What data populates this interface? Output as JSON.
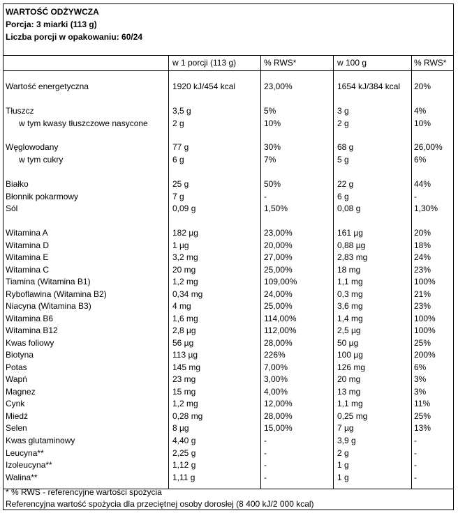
{
  "header": {
    "title": "WARTOŚĆ ODŻYWCZA",
    "serving": "Porcja: 3 miarki (113 g)",
    "servings_count": "Liczba porcji w opakowaniu: 60/24"
  },
  "columns": [
    "",
    "w 1 porcji (113 g)",
    "% RWS*",
    "w 100 g",
    "% RWS*"
  ],
  "rows": [
    [
      "Wartość energetyczna",
      "1920 kJ/454 kcal",
      "23,00%",
      "1654 kJ/384 kcal",
      "20%"
    ],
    [
      "Tłuszcz",
      "3,5 g",
      "5%",
      "3 g",
      "4%"
    ],
    [
      "w tym kwasy tłuszczowe nasycone",
      "2 g",
      "10%",
      "2 g",
      "10%"
    ],
    [
      "Węglowodany",
      "77 g",
      "30%",
      "68 g",
      "26,00%"
    ],
    [
      "w tym cukry",
      "6 g",
      "7%",
      "5 g",
      "6%"
    ],
    [
      "Białko",
      "25 g",
      "50%",
      "22 g",
      "44%"
    ],
    [
      "Błonnik pokarmowy",
      "7 g",
      "-",
      "6 g",
      "-"
    ],
    [
      "Sól",
      "0,09 g",
      "1,50%",
      "0,08 g",
      "1,30%"
    ],
    [
      "Witamina A",
      "182 µg",
      "23,00%",
      "161 µg",
      "20%"
    ],
    [
      "Witamina D",
      "1 µg",
      "20,00%",
      "0,88 µg",
      "18%"
    ],
    [
      "Witamina E",
      "3,2 mg",
      "27,00%",
      "2,83 mg",
      "24%"
    ],
    [
      "Witamina C",
      "20 mg",
      "25,00%",
      "18 mg",
      "23%"
    ],
    [
      "Tiamina (Witamina B1)",
      "1,2 mg",
      "109,00%",
      "1,1 mg",
      "100%"
    ],
    [
      "Ryboflawina (Witamina B2)",
      "0,34 mg",
      "24,00%",
      "0,3 mg",
      "21%"
    ],
    [
      "Niacyna (Witamina B3)",
      "4 mg",
      "25,00%",
      "3,6 mg",
      "23%"
    ],
    [
      "Witamina B6",
      "1,6 mg",
      "114,00%",
      "1,4 mg",
      "100%"
    ],
    [
      "Witamina B12",
      "2,8 µg",
      "112,00%",
      "2,5 µg",
      "100%"
    ],
    [
      "Kwas foliowy",
      "56 µg",
      "28,00%",
      "50 µg",
      "25%"
    ],
    [
      "Biotyna",
      "113 µg",
      "226%",
      "100 µg",
      "200%"
    ],
    [
      "Potas",
      "145 mg",
      "7,00%",
      "126 mg",
      "6%"
    ],
    [
      "Wapń",
      "23 mg",
      "3,00%",
      "20 mg",
      "3%"
    ],
    [
      "Magnez",
      "15 mg",
      "4,00%",
      "13 mg",
      "3%"
    ],
    [
      "Cynk",
      "1,2 mg",
      "12,00%",
      "1,1 mg",
      "11%"
    ],
    [
      "Miedź",
      "0,28 mg",
      "28,00%",
      "0,25 mg",
      "25%"
    ],
    [
      "Selen",
      "8 µg",
      "15,00%",
      "7 µg",
      "13%"
    ],
    [
      "Kwas glutaminowy",
      "4,40 g",
      "-",
      "3,9 g",
      "-"
    ],
    [
      "Leucyna**",
      "2,25 g",
      "-",
      "2 g",
      "-"
    ],
    [
      "Izoleucyna**",
      "1,12 g",
      "-",
      "1 g",
      "-"
    ],
    [
      "Walina**",
      "1,11 g",
      "-",
      "1 g",
      "-"
    ]
  ],
  "footnotes": [
    "* % RWS - referencyjne wartości spożycia",
    "Referencyjna wartość spożycia dla przeciętnej osoby dorosłej (8 400 kJ/2 000 kcal)"
  ]
}
